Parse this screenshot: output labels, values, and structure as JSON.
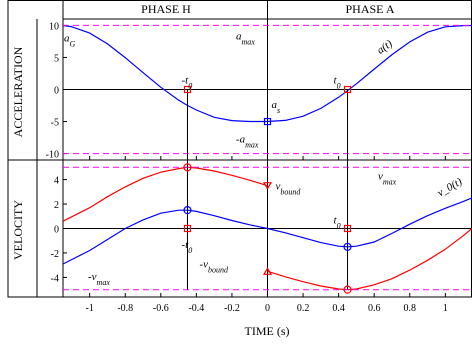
{
  "chart_data": {
    "type": "line",
    "xlabel": "TIME (s)",
    "x_ticks": [
      "-1",
      "-0.8",
      "-0.6",
      "-0.4",
      "-0.2",
      "0",
      "0.2",
      "0.4",
      "0.6",
      "0.8",
      "1"
    ],
    "xlim": [
      -1.15,
      1.15
    ],
    "phases": [
      "PHASE H",
      "PHASE A"
    ],
    "colors": {
      "magenta": "#ff00ff",
      "blue": "#0000ff",
      "red": "#ff0000",
      "black": "#000000"
    },
    "panels": [
      {
        "name": "ACCELERATION",
        "ylabel": "ACCELERATION",
        "ylim": [
          -11,
          11
        ],
        "y_ticks": [
          "10",
          "5",
          "0",
          "-5",
          "-10"
        ],
        "grid": false,
        "series": [
          {
            "name": "a(t)",
            "color": "#0000ff",
            "x": [
              -1.15,
              -1.1,
              -1.0,
              -0.9,
              -0.8,
              -0.7,
              -0.6,
              -0.5,
              -0.45,
              -0.4,
              -0.3,
              -0.2,
              -0.1,
              0.0,
              0.1,
              0.2,
              0.3,
              0.4,
              0.45,
              0.5,
              0.6,
              0.7,
              0.8,
              0.9,
              1.0,
              1.1,
              1.15
            ],
            "y": [
              9.98,
              9.79,
              8.8,
              7.12,
              4.98,
              2.64,
              0.35,
              -1.65,
              -2.5,
              -3.2,
              -4.33,
              -4.86,
              -4.99,
              -5.0,
              -4.82,
              -4.17,
              -2.95,
              -1.21,
              -0.19,
              0.89,
              3.18,
              5.45,
              7.43,
              8.94,
              9.79,
              9.97,
              9.98
            ]
          },
          {
            "name": "a_max",
            "color": "#ff00ff",
            "style": "dashed",
            "x": [
              -1.15,
              1.15
            ],
            "y": [
              10,
              10
            ]
          },
          {
            "name": "-a_max",
            "color": "#ff00ff",
            "style": "dashed",
            "x": [
              -1.15,
              1.15
            ],
            "y": [
              -10,
              -10
            ]
          }
        ],
        "labels": [
          "a_G",
          "a_max",
          "a(t)",
          "-t_0",
          "t_0",
          "a_s",
          "-a_max"
        ]
      },
      {
        "name": "VELOCITY",
        "ylabel": "VELOCITY",
        "ylim": [
          -5.6,
          5.6
        ],
        "y_ticks": [
          "4",
          "2",
          "0",
          "-2",
          "-4"
        ],
        "grid": false,
        "series": [
          {
            "name": "v_0(t)",
            "color": "#0000ff",
            "x": [
              -1.15,
              -1.0,
              -0.9,
              -0.8,
              -0.7,
              -0.6,
              -0.5,
              -0.45,
              -0.4,
              -0.3,
              -0.2,
              -0.1,
              0.0,
              0.1,
              0.2,
              0.3,
              0.4,
              0.45,
              0.5,
              0.6,
              0.7,
              0.8,
              0.9,
              1.0,
              1.1,
              1.15
            ],
            "y": [
              -2.9,
              -1.8,
              -0.9,
              0.0,
              0.7,
              1.25,
              1.5,
              1.5,
              1.4,
              1.05,
              0.65,
              0.3,
              0.0,
              -0.35,
              -0.75,
              -1.15,
              -1.45,
              -1.5,
              -1.45,
              -1.1,
              -0.4,
              0.35,
              1.05,
              1.65,
              2.2,
              2.5
            ]
          },
          {
            "name": "v(t) upper",
            "color": "#ff0000",
            "x": [
              -1.15,
              -1.0,
              -0.9,
              -0.8,
              -0.7,
              -0.6,
              -0.5,
              -0.45,
              -0.4,
              -0.3,
              -0.2,
              -0.1,
              0.0
            ],
            "y": [
              0.6,
              1.7,
              2.6,
              3.4,
              4.1,
              4.6,
              4.9,
              5.0,
              4.95,
              4.7,
              4.35,
              3.95,
              3.5
            ]
          },
          {
            "name": "v(t) lower",
            "color": "#ff0000",
            "x": [
              0.0,
              0.1,
              0.2,
              0.3,
              0.4,
              0.45,
              0.5,
              0.6,
              0.7,
              0.8,
              0.9,
              1.0,
              1.1,
              1.15
            ],
            "y": [
              -3.5,
              -3.95,
              -4.35,
              -4.7,
              -4.95,
              -5.0,
              -4.95,
              -4.6,
              -4.1,
              -3.4,
              -2.6,
              -1.7,
              -0.6,
              0.0
            ]
          },
          {
            "name": "v_max",
            "color": "#ff00ff",
            "style": "dashed",
            "x": [
              -1.15,
              1.15
            ],
            "y": [
              5,
              5
            ]
          },
          {
            "name": "-v_max",
            "color": "#ff00ff",
            "style": "dashed",
            "x": [
              -1.15,
              1.15
            ],
            "y": [
              -5,
              -5
            ]
          }
        ],
        "labels": [
          "v_bound",
          "v_max",
          "v_0(t)",
          "t_0",
          "-t_0",
          "-v_bound",
          "-v_max"
        ]
      }
    ],
    "verticals": [
      -0.45,
      0.45
    ]
  }
}
